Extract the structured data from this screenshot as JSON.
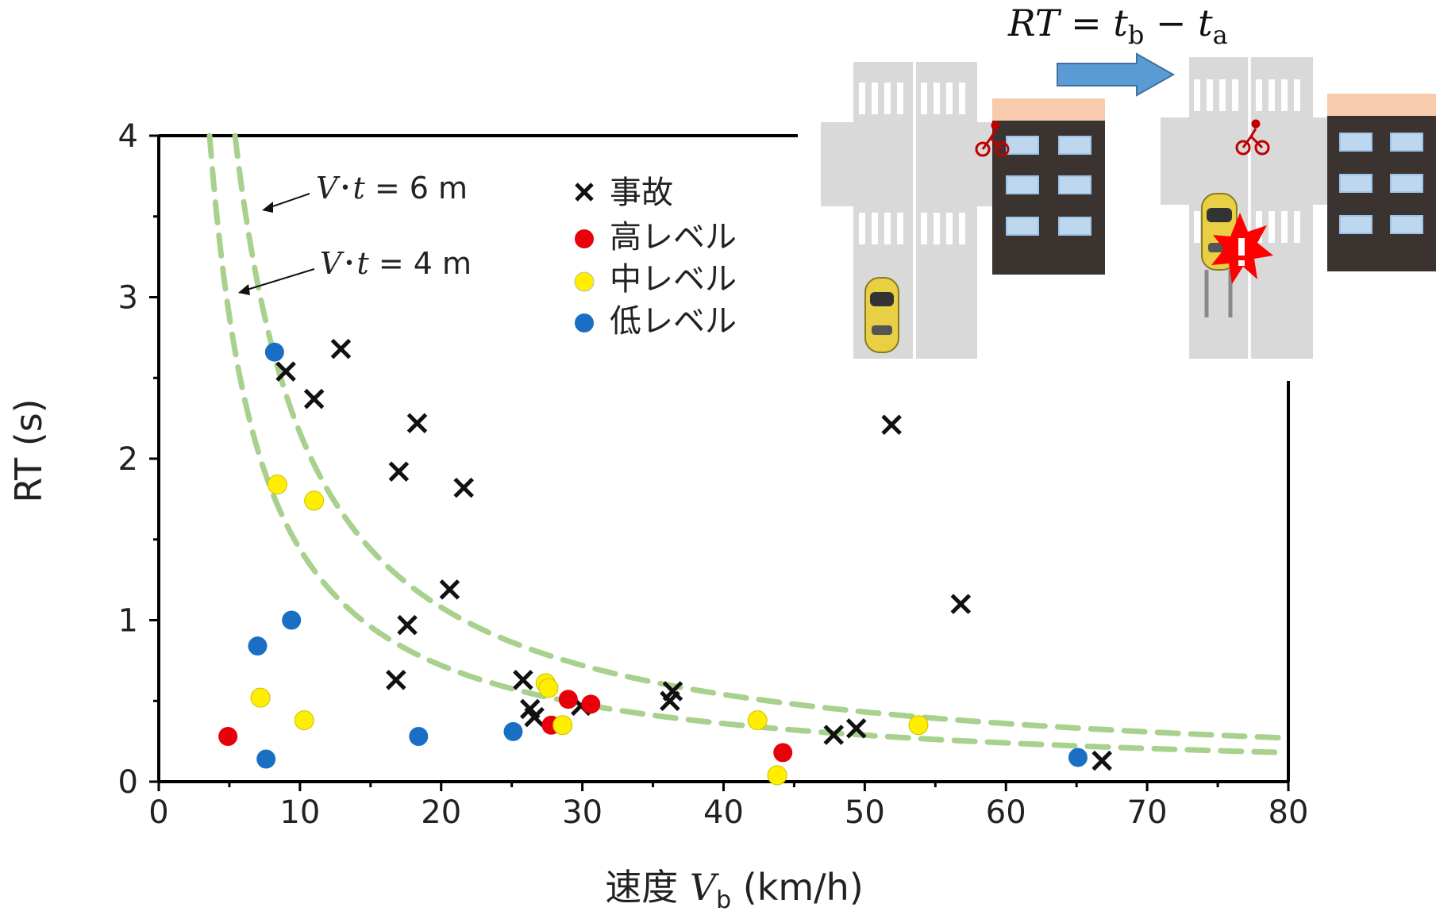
{
  "chart_data": {
    "type": "scatter",
    "xlabel_main": "速度",
    "xlabel_var": "V",
    "xlabel_sub": "b",
    "xlabel_unit": "(km/h)",
    "ylabel": "RT (s)",
    "xlim": [
      0,
      80
    ],
    "ylim": [
      0,
      4
    ],
    "xticks": [
      "0",
      "10",
      "20",
      "30",
      "40",
      "50",
      "60",
      "70",
      "80"
    ],
    "yticks": [
      "0",
      "1",
      "2",
      "3",
      "4"
    ],
    "legend_position": "top-center",
    "series": [
      {
        "name": "事故",
        "marker": "x",
        "color": "#111111",
        "points": [
          [
            9.0,
            2.54
          ],
          [
            11.0,
            2.37
          ],
          [
            12.9,
            2.68
          ],
          [
            17.0,
            1.92
          ],
          [
            18.3,
            2.22
          ],
          [
            21.6,
            1.82
          ],
          [
            20.6,
            1.19
          ],
          [
            17.6,
            0.97
          ],
          [
            16.8,
            0.63
          ],
          [
            25.8,
            0.63
          ],
          [
            26.3,
            0.45
          ],
          [
            26.6,
            0.4
          ],
          [
            29.9,
            0.47
          ],
          [
            36.4,
            0.56
          ],
          [
            36.2,
            0.5
          ],
          [
            47.8,
            0.29
          ],
          [
            49.4,
            0.33
          ],
          [
            51.9,
            2.21
          ],
          [
            56.8,
            1.1
          ],
          [
            66.8,
            0.13
          ]
        ]
      },
      {
        "name": "高レベル",
        "marker": "circle",
        "color": "#e8000b",
        "points": [
          [
            4.9,
            0.28
          ],
          [
            27.8,
            0.35
          ],
          [
            29.0,
            0.51
          ],
          [
            30.6,
            0.48
          ],
          [
            44.2,
            0.18
          ]
        ]
      },
      {
        "name": "中レベル",
        "marker": "circle",
        "color": "#ffee00",
        "points": [
          [
            8.4,
            1.84
          ],
          [
            11.0,
            1.74
          ],
          [
            7.2,
            0.52
          ],
          [
            10.3,
            0.38
          ],
          [
            27.4,
            0.61
          ],
          [
            27.6,
            0.58
          ],
          [
            28.6,
            0.35
          ],
          [
            42.4,
            0.38
          ],
          [
            43.8,
            0.04
          ],
          [
            53.8,
            0.35
          ]
        ]
      },
      {
        "name": "低レベル",
        "marker": "circle",
        "color": "#1a6fc4",
        "points": [
          [
            8.2,
            2.66
          ],
          [
            7.0,
            0.84
          ],
          [
            9.4,
            1.0
          ],
          [
            7.6,
            0.14
          ],
          [
            18.4,
            0.28
          ],
          [
            25.1,
            0.31
          ],
          [
            65.1,
            0.15
          ]
        ]
      }
    ],
    "curves": [
      {
        "label_var": "V",
        "label_sep": "･",
        "label_var2": "t",
        "label_rest": " = 6 m",
        "k": 6,
        "color": "#a9d18e"
      },
      {
        "label_var": "V",
        "label_sep": "･",
        "label_var2": "t",
        "label_rest": " = 4 m",
        "k": 4,
        "color": "#a9d18e"
      }
    ]
  },
  "formula": {
    "lhs": "RT",
    "eq": " = ",
    "t1": "t",
    "sub1": "b",
    "minus": " − ",
    "t2": "t",
    "sub2": "a"
  },
  "illustration": {
    "description_icons": [
      "crosswalk-scene-before",
      "arrow-right-icon",
      "crosswalk-scene-collision"
    ],
    "arrow_color": "#5b9bd5",
    "car_color": "#e8cf44",
    "bicycle_color": "#c00000",
    "building_color": "#3b3330",
    "building_top_color": "#f8cbad",
    "road_color": "#d9d9d9",
    "impact_color": "#ff0000"
  }
}
